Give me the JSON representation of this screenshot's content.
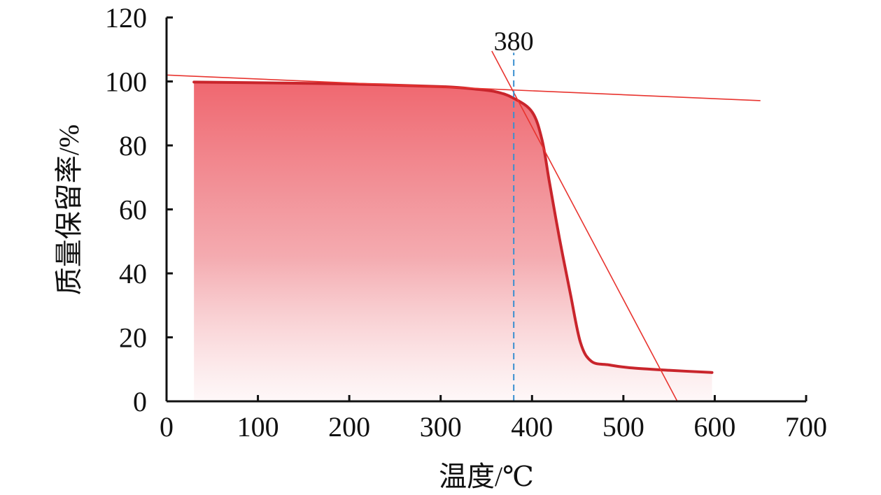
{
  "chart_data": {
    "type": "area",
    "title": "",
    "xlabel": "温度/℃",
    "ylabel": "质量保留率/%",
    "xlim": [
      0,
      700
    ],
    "ylim": [
      0,
      120
    ],
    "xticks": [
      0,
      100,
      200,
      300,
      400,
      500,
      600,
      700
    ],
    "yticks": [
      0,
      20,
      40,
      60,
      80,
      100,
      120
    ],
    "grid": false,
    "series": [
      {
        "x": [
          30,
          100,
          200,
          300,
          338,
          360,
          379,
          400,
          411,
          419,
          430,
          442,
          453,
          465,
          484,
          507,
          550,
          597
        ],
        "y": [
          99.8,
          99.6,
          99.2,
          98.4,
          97.6,
          96.8,
          94.9,
          90.5,
          81.7,
          68.6,
          51,
          33.6,
          18.4,
          12.5,
          11.4,
          10.5,
          9.7,
          9.0
        ],
        "color": "#c9252c",
        "fill": "gradient #ee5a63 to white"
      }
    ],
    "tangent_lines": [
      {
        "x": [
          0,
          650
        ],
        "y": [
          102,
          94
        ],
        "color": "#e8342f"
      },
      {
        "x": [
          356,
          559
        ],
        "y": [
          109.5,
          0
        ],
        "color": "#e8342f"
      }
    ],
    "vertical_marker": {
      "x": 380,
      "y_top": 109,
      "label": "380",
      "color": "#3a8fd0",
      "style": "dashed"
    }
  }
}
